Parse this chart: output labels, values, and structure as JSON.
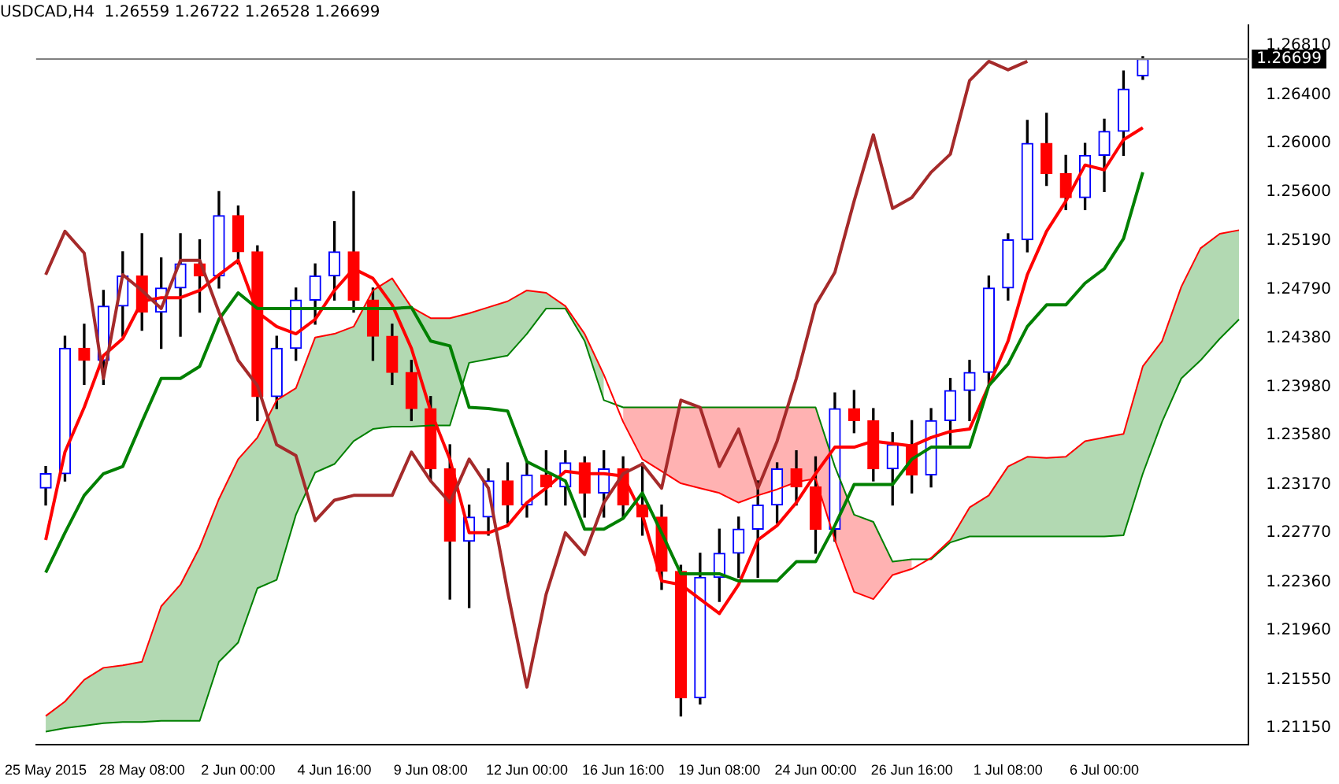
{
  "chart_data": {
    "type": "candlestick",
    "title": "USDCAD,H4  1.26559 1.26722 1.26528 1.26699",
    "categories": [
      "25 May 2015",
      null,
      null,
      null,
      null,
      "28 May 08:00",
      null,
      null,
      null,
      null,
      "2 Jun 00:00",
      null,
      null,
      null,
      null,
      "4 Jun 16:00",
      null,
      null,
      null,
      null,
      "9 Jun 08:00",
      null,
      null,
      null,
      null,
      "12 Jun 00:00",
      null,
      null,
      null,
      null,
      "16 Jun 16:00",
      null,
      null,
      null,
      null,
      "19 Jun 08:00",
      null,
      null,
      null,
      null,
      "24 Jun 00:00",
      null,
      null,
      null,
      null,
      "26 Jun 16:00",
      null,
      null,
      null,
      null,
      "1 Jul 08:00",
      null,
      null,
      null,
      null,
      "6 Jul 00:00",
      null,
      null,
      null,
      null,
      null,
      null,
      null
    ],
    "ohlc": [
      [
        1.2314,
        1.2332,
        1.23,
        1.2326
      ],
      [
        1.2326,
        1.244,
        1.232,
        1.243
      ],
      [
        1.243,
        1.245,
        1.24,
        1.242
      ],
      [
        1.242,
        1.2478,
        1.24,
        1.2465
      ],
      [
        1.2465,
        1.251,
        1.244,
        1.249
      ],
      [
        1.249,
        1.2525,
        1.2445,
        1.246
      ],
      [
        1.246,
        1.2505,
        1.243,
        1.248
      ],
      [
        1.248,
        1.2525,
        1.244,
        1.25
      ],
      [
        1.25,
        1.252,
        1.246,
        1.249
      ],
      [
        1.249,
        1.256,
        1.248,
        1.254
      ],
      [
        1.254,
        1.2548,
        1.25,
        1.251
      ],
      [
        1.251,
        1.2515,
        1.237,
        1.239
      ],
      [
        1.239,
        1.244,
        1.238,
        1.243
      ],
      [
        1.243,
        1.248,
        1.242,
        1.247
      ],
      [
        1.247,
        1.25,
        1.245,
        1.249
      ],
      [
        1.249,
        1.2535,
        1.247,
        1.251
      ],
      [
        1.251,
        1.256,
        1.246,
        1.247
      ],
      [
        1.247,
        1.248,
        1.242,
        1.244
      ],
      [
        1.244,
        1.245,
        1.24,
        1.241
      ],
      [
        1.241,
        1.242,
        1.237,
        1.238
      ],
      [
        1.238,
        1.239,
        1.232,
        1.233
      ],
      [
        1.233,
        1.235,
        1.2222,
        1.227
      ],
      [
        1.227,
        1.23,
        1.2215,
        1.229
      ],
      [
        1.229,
        1.233,
        1.2275,
        1.232
      ],
      [
        1.232,
        1.2335,
        1.2285,
        1.23
      ],
      [
        1.23,
        1.2335,
        1.229,
        1.2325
      ],
      [
        1.2325,
        1.2345,
        1.23,
        1.2315
      ],
      [
        1.2315,
        1.2345,
        1.23,
        1.2335
      ],
      [
        1.2335,
        1.234,
        1.229,
        1.231
      ],
      [
        1.231,
        1.2345,
        1.229,
        1.233
      ],
      [
        1.233,
        1.234,
        1.229,
        1.23
      ],
      [
        1.23,
        1.2335,
        1.2275,
        1.229
      ],
      [
        1.229,
        1.23,
        1.223,
        1.2245
      ],
      [
        1.2245,
        1.225,
        1.2125,
        1.214
      ],
      [
        1.214,
        1.226,
        1.2135,
        1.224
      ],
      [
        1.224,
        1.228,
        1.222,
        1.226
      ],
      [
        1.226,
        1.229,
        1.224,
        1.228
      ],
      [
        1.228,
        1.232,
        1.224,
        1.23
      ],
      [
        1.23,
        1.2335,
        1.2285,
        1.233
      ],
      [
        1.233,
        1.2345,
        1.23,
        1.2315
      ],
      [
        1.2315,
        1.234,
        1.226,
        1.228
      ],
      [
        1.228,
        1.2393,
        1.227,
        1.238
      ],
      [
        1.238,
        1.2395,
        1.236,
        1.237
      ],
      [
        1.237,
        1.238,
        1.232,
        1.233
      ],
      [
        1.233,
        1.236,
        1.23,
        1.235
      ],
      [
        1.235,
        1.237,
        1.231,
        1.2325
      ],
      [
        1.2325,
        1.238,
        1.2315,
        1.237
      ],
      [
        1.237,
        1.2405,
        1.235,
        1.2395
      ],
      [
        1.2395,
        1.242,
        1.237,
        1.241
      ],
      [
        1.241,
        1.249,
        1.24,
        1.248
      ],
      [
        1.248,
        1.2525,
        1.247,
        1.252
      ],
      [
        1.252,
        1.2619,
        1.251,
        1.26
      ],
      [
        1.26,
        1.2625,
        1.2565,
        1.2575
      ],
      [
        1.2575,
        1.259,
        1.2545,
        1.2555
      ],
      [
        1.2555,
        1.26,
        1.2545,
        1.259
      ],
      [
        1.259,
        1.262,
        1.256,
        1.261
      ],
      [
        1.261,
        1.266,
        1.259,
        1.2645
      ],
      [
        1.2656,
        1.2672,
        1.2653,
        1.267
      ],
      null,
      null,
      null,
      null,
      null
    ],
    "colors": [
      "#0000ff",
      "#0000ff",
      "#ff0000",
      "#0000ff",
      "#0000ff",
      "#ff0000",
      "#0000ff",
      "#0000ff",
      "#ff0000",
      "#0000ff",
      "#ff0000",
      "#ff0000",
      "#0000ff",
      "#0000ff",
      "#0000ff",
      "#0000ff",
      "#ff0000",
      "#ff0000",
      "#ff0000",
      "#ff0000",
      "#ff0000",
      "#ff0000",
      "#0000ff",
      "#0000ff",
      "#ff0000",
      "#0000ff",
      "#ff0000",
      "#0000ff",
      "#ff0000",
      "#0000ff",
      "#ff0000",
      "#ff0000",
      "#ff0000",
      "#ff0000",
      "#0000ff",
      "#0000ff",
      "#0000ff",
      "#0000ff",
      "#0000ff",
      "#ff0000",
      "#ff0000",
      "#0000ff",
      "#ff0000",
      "#ff0000",
      "#0000ff",
      "#ff0000",
      "#0000ff",
      "#0000ff",
      "#0000ff",
      "#0000ff",
      "#0000ff",
      "#0000ff",
      "#ff0000",
      "#ff0000",
      "#0000ff",
      "#0000ff",
      "#0000ff",
      "#0000ff",
      null,
      null,
      null,
      null,
      null
    ],
    "series": [
      {
        "type": "line",
        "color": "#ff0000",
        "lower": [
          null,
          null,
          null,
          null,
          null,
          null,
          null,
          null,
          null,
          null,
          null,
          null,
          null,
          null,
          null,
          null,
          null,
          null,
          null,
          null,
          null,
          null,
          null,
          null,
          null,
          null,
          null,
          null,
          null,
          null,
          1.2369,
          1.2338,
          1.2328,
          1.2318,
          1.2314,
          1.231,
          1.2302,
          1.2308,
          1.2313,
          1.2319,
          1.2322,
          1.2271,
          1.2228,
          1.2222,
          1.2242,
          1.2247,
          null,
          null,
          null,
          null,
          null,
          null,
          null,
          null,
          null,
          null,
          null,
          null,
          null,
          null,
          null,
          null,
          null
        ],
        "upper": [
          null,
          null,
          null,
          null,
          null,
          null,
          null,
          null,
          null,
          null,
          null,
          null,
          null,
          null,
          null,
          null,
          null,
          null,
          null,
          null,
          null,
          null,
          null,
          null,
          null,
          null,
          null,
          null,
          null,
          null,
          1.2381,
          1.2381,
          1.2381,
          1.2381,
          1.2381,
          1.2381,
          1.2381,
          1.2381,
          1.2381,
          1.2381,
          1.2381,
          1.2332,
          1.2292,
          1.2286,
          1.2253,
          1.2255,
          null,
          null,
          null,
          null,
          null,
          null,
          null,
          null,
          null,
          null,
          null,
          null,
          null,
          null,
          null,
          null,
          null
        ],
        "values": [
          1.2125,
          1.2137,
          1.2155,
          1.2165,
          1.2167,
          1.217,
          1.2216,
          1.2234,
          1.2265,
          1.2305,
          1.2338,
          1.2356,
          1.2387,
          1.2397,
          1.2439,
          1.2442,
          1.2448,
          1.2478,
          1.2488,
          1.2464,
          1.2455,
          1.2455,
          1.2459,
          1.2464,
          1.2469,
          1.2478,
          1.2476,
          1.2465,
          1.2442,
          1.2408,
          1.2369,
          1.2338,
          1.2328,
          1.2318,
          1.2314,
          1.231,
          1.2302,
          1.2308,
          1.2313,
          1.2319,
          1.2322,
          1.2271,
          1.2228,
          1.2222,
          1.2242,
          1.2247,
          1.2256,
          1.2271,
          1.2298,
          1.2308,
          1.2332,
          1.234,
          1.2339,
          1.234,
          1.2353,
          1.2356,
          1.2359,
          1.2415,
          1.2436,
          1.2481,
          1.2513,
          1.2525,
          1.2528
        ]
      },
      {
        "type": "line",
        "color": "#008000",
        "lower": [
          1.2112,
          1.2115,
          1.2117,
          1.2119,
          1.212,
          1.212,
          1.2121,
          1.2121,
          1.2121,
          1.217,
          1.2186,
          1.2231,
          1.2238,
          1.2292,
          1.2327,
          1.2334,
          1.2353,
          1.2363,
          1.2365,
          1.2365,
          1.2366,
          1.2366,
          1.2418,
          1.2421,
          1.2424,
          1.2442,
          1.2463,
          1.2463,
          1.2436,
          1.2387,
          null,
          null,
          null,
          null,
          null,
          null,
          null,
          null,
          null,
          null,
          null,
          null,
          null,
          null,
          null,
          null,
          1.2255,
          1.2269,
          1.2274,
          1.2274,
          1.2274,
          1.2274,
          1.2274,
          1.2274,
          1.2274,
          1.2274,
          1.2275,
          1.2326,
          1.2369,
          1.2405,
          1.242,
          1.2438,
          1.2454
        ],
        "upper": [
          1.2125,
          1.2137,
          1.2155,
          1.2165,
          1.2167,
          1.217,
          1.2216,
          1.2234,
          1.2265,
          1.2305,
          1.2338,
          1.2356,
          1.2387,
          1.2397,
          1.2439,
          1.2442,
          1.2448,
          1.2478,
          1.2488,
          1.2464,
          1.2455,
          1.2455,
          1.2459,
          1.2464,
          1.2469,
          1.2478,
          1.2476,
          1.2465,
          1.2442,
          1.2408,
          null,
          null,
          null,
          null,
          null,
          null,
          null,
          null,
          null,
          null,
          null,
          null,
          null,
          null,
          null,
          null,
          1.2256,
          1.2271,
          1.2298,
          1.2308,
          1.2332,
          1.234,
          1.2339,
          1.234,
          1.2353,
          1.2356,
          1.2359,
          1.2415,
          1.2436,
          1.2481,
          1.2513,
          1.2525,
          1.2528
        ],
        "values": [
          1.2112,
          1.2115,
          1.2117,
          1.2119,
          1.212,
          1.212,
          1.2121,
          1.2121,
          1.2121,
          1.217,
          1.2186,
          1.2231,
          1.2238,
          1.2292,
          1.2327,
          1.2334,
          1.2353,
          1.2363,
          1.2365,
          1.2365,
          1.2366,
          1.2366,
          1.2418,
          1.2421,
          1.2424,
          1.2442,
          1.2463,
          1.2463,
          1.2436,
          1.2387,
          1.2381,
          1.2381,
          1.2381,
          1.2381,
          1.2381,
          1.2381,
          1.2381,
          1.2381,
          1.2381,
          1.2381,
          1.2381,
          1.2332,
          1.2292,
          1.2286,
          1.2253,
          1.2255,
          1.2255,
          1.2269,
          1.2274,
          1.2274,
          1.2274,
          1.2274,
          1.2274,
          1.2274,
          1.2274,
          1.2274,
          1.2275,
          1.2326,
          1.2369,
          1.2405,
          1.242,
          1.2438,
          1.2454
        ]
      },
      {
        "type": "line",
        "color": "#a52a2a",
        "values": [
          1.2491,
          1.2527,
          1.2509,
          1.2405,
          1.2491,
          1.2478,
          1.2463,
          1.2503,
          1.2503,
          1.246,
          1.242,
          1.2399,
          1.235,
          1.2341,
          1.2287,
          1.2304,
          1.2308,
          1.2308,
          1.2308,
          1.2344,
          1.232,
          1.2302,
          1.2338,
          1.2314,
          1.2228,
          1.2149,
          1.2226,
          1.2277,
          1.2259,
          1.2302,
          1.2326,
          1.2334,
          1.2314,
          1.2387,
          1.2381,
          1.2332,
          1.2363,
          1.2314,
          1.2353,
          1.2405,
          1.2466,
          1.2493,
          1.2552,
          1.2607,
          1.2546,
          1.2555,
          1.2576,
          1.2591,
          1.2652,
          1.2668,
          1.2661,
          1.2668,
          null,
          null,
          null,
          null,
          null,
          null,
          null,
          null,
          null,
          null,
          null
        ]
      },
      {
        "type": "line",
        "color": "#008000",
        "values": [
          1.2244,
          1.2277,
          1.2308,
          1.2326,
          1.2332,
          1.2369,
          1.2405,
          1.2405,
          1.2415,
          1.2454,
          1.2476,
          1.2463,
          1.2463,
          1.2463,
          1.2463,
          1.2463,
          1.2463,
          1.2463,
          1.2463,
          1.2464,
          1.2436,
          1.2432,
          1.2381,
          1.238,
          1.2378,
          1.2336,
          1.2328,
          1.232,
          1.228,
          1.228,
          1.2289,
          1.231,
          1.2277,
          1.2243,
          1.2243,
          1.2243,
          1.2237,
          1.2237,
          1.2237,
          1.2253,
          1.2253,
          1.2283,
          1.2317,
          1.2317,
          1.2317,
          1.2338,
          1.2348,
          1.2348,
          1.2348,
          1.2399,
          1.2417,
          1.2448,
          1.2466,
          1.2466,
          1.2484,
          1.2496,
          1.2521,
          1.2576,
          null,
          null,
          null,
          null,
          null
        ]
      },
      {
        "type": "line",
        "color": "#ff0000",
        "values": [
          1.2271,
          1.2344,
          1.2381,
          1.2424,
          1.2438,
          1.2469,
          1.2472,
          1.2472,
          1.2478,
          1.2491,
          1.2503,
          1.246,
          1.2448,
          1.2442,
          1.2454,
          1.2478,
          1.2496,
          1.2488,
          1.2466,
          1.243,
          1.2378,
          1.2338,
          1.2277,
          1.2277,
          1.2283,
          1.2302,
          1.2314,
          1.2328,
          1.2326,
          1.2326,
          1.2324,
          1.2292,
          1.2237,
          1.2234,
          1.2222,
          1.221,
          1.2234,
          1.2271,
          1.2283,
          1.2302,
          1.2326,
          1.2348,
          1.2348,
          1.2353,
          1.2351,
          1.2349,
          1.2356,
          1.2361,
          1.2363,
          1.2399,
          1.2436,
          1.2491,
          1.2527,
          1.2552,
          1.2582,
          1.2578,
          1.2603,
          1.2613,
          null,
          null,
          null,
          null,
          null
        ]
      }
    ],
    "ylim": [
      1.2101,
      1.2698
    ],
    "yticks": [
      {
        "value": 1.2681,
        "label": "1.26810"
      },
      {
        "value": 1.264,
        "label": "1.26400"
      },
      {
        "value": 1.26,
        "label": "1.26000"
      },
      {
        "value": 1.256,
        "label": "1.25600"
      },
      {
        "value": 1.2519,
        "label": "1.25190"
      },
      {
        "value": 1.2479,
        "label": "1.24790"
      },
      {
        "value": 1.2438,
        "label": "1.24380"
      },
      {
        "value": 1.2398,
        "label": "1.23980"
      },
      {
        "value": 1.2358,
        "label": "1.23580"
      },
      {
        "value": 1.2317,
        "label": "1.23170"
      },
      {
        "value": 1.2277,
        "label": "1.22770"
      },
      {
        "value": 1.2236,
        "label": "1.22360"
      },
      {
        "value": 1.2196,
        "label": "1.21960"
      },
      {
        "value": 1.2155,
        "label": "1.21550"
      },
      {
        "value": 1.2115,
        "label": "1.21150"
      }
    ],
    "ref_lines": [
      {
        "axis": "y",
        "value": 1.26699,
        "label": "1.26699",
        "color": "#808080"
      }
    ],
    "grid": false,
    "legend": false
  }
}
